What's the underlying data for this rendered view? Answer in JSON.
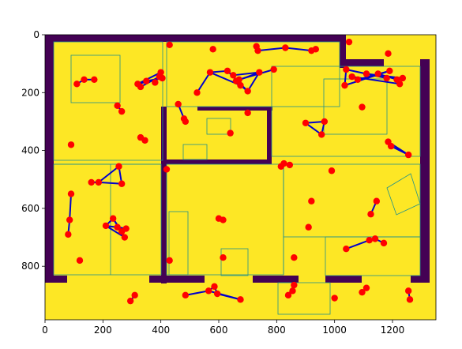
{
  "chart_data": {
    "type": "scatter",
    "title": "",
    "xlabel": "",
    "ylabel": "",
    "xlim": [
      0,
      1350
    ],
    "ylim": [
      985,
      0
    ],
    "x_ticks": [
      "0",
      "200",
      "400",
      "600",
      "800",
      "1000",
      "1200"
    ],
    "y_ticks": [
      "0",
      "200",
      "400",
      "600",
      "800"
    ],
    "grid": false,
    "legend": "none",
    "background": "floor plan raster (yellow rooms, dark purple walls)",
    "colors": {
      "background": "#fde725",
      "walls": "#440154",
      "lines": "#21918c",
      "points": "#ff0000",
      "edges": "#0000cc"
    },
    "points": [
      [
        430,
        35
      ],
      [
        580,
        50
      ],
      [
        730,
        40
      ],
      [
        735,
        55
      ],
      [
        830,
        45
      ],
      [
        920,
        55
      ],
      [
        935,
        50
      ],
      [
        1050,
        25
      ],
      [
        1185,
        65
      ],
      [
        110,
        170
      ],
      [
        135,
        155
      ],
      [
        170,
        155
      ],
      [
        320,
        170
      ],
      [
        330,
        180
      ],
      [
        350,
        160
      ],
      [
        380,
        165
      ],
      [
        395,
        145
      ],
      [
        400,
        130
      ],
      [
        405,
        150
      ],
      [
        525,
        200
      ],
      [
        570,
        130
      ],
      [
        630,
        125
      ],
      [
        650,
        140
      ],
      [
        660,
        160
      ],
      [
        670,
        155
      ],
      [
        675,
        175
      ],
      [
        700,
        195
      ],
      [
        740,
        130
      ],
      [
        790,
        120
      ],
      [
        1035,
        175
      ],
      [
        1040,
        120
      ],
      [
        1060,
        145
      ],
      [
        1080,
        155
      ],
      [
        1110,
        135
      ],
      [
        1150,
        135
      ],
      [
        1180,
        150
      ],
      [
        1190,
        125
      ],
      [
        1215,
        155
      ],
      [
        1225,
        170
      ],
      [
        1235,
        150
      ],
      [
        250,
        245
      ],
      [
        265,
        265
      ],
      [
        460,
        240
      ],
      [
        480,
        290
      ],
      [
        485,
        300
      ],
      [
        640,
        340
      ],
      [
        700,
        270
      ],
      [
        900,
        305
      ],
      [
        955,
        345
      ],
      [
        965,
        300
      ],
      [
        1095,
        250
      ],
      [
        1185,
        370
      ],
      [
        1195,
        385
      ],
      [
        1255,
        415
      ],
      [
        90,
        380
      ],
      [
        330,
        355
      ],
      [
        345,
        365
      ],
      [
        160,
        510
      ],
      [
        185,
        510
      ],
      [
        255,
        455
      ],
      [
        265,
        515
      ],
      [
        420,
        465
      ],
      [
        815,
        455
      ],
      [
        825,
        445
      ],
      [
        845,
        450
      ],
      [
        990,
        470
      ],
      [
        90,
        550
      ],
      [
        85,
        640
      ],
      [
        80,
        690
      ],
      [
        210,
        660
      ],
      [
        235,
        635
      ],
      [
        250,
        665
      ],
      [
        265,
        680
      ],
      [
        275,
        700
      ],
      [
        280,
        670
      ],
      [
        920,
        575
      ],
      [
        1125,
        620
      ],
      [
        1145,
        575
      ],
      [
        120,
        780
      ],
      [
        430,
        780
      ],
      [
        600,
        635
      ],
      [
        615,
        640
      ],
      [
        615,
        770
      ],
      [
        860,
        770
      ],
      [
        910,
        665
      ],
      [
        1040,
        740
      ],
      [
        1120,
        710
      ],
      [
        1140,
        705
      ],
      [
        1170,
        720
      ],
      [
        295,
        920
      ],
      [
        310,
        900
      ],
      [
        485,
        900
      ],
      [
        565,
        885
      ],
      [
        585,
        870
      ],
      [
        595,
        895
      ],
      [
        675,
        915
      ],
      [
        840,
        900
      ],
      [
        855,
        885
      ],
      [
        860,
        865
      ],
      [
        1000,
        910
      ],
      [
        1095,
        890
      ],
      [
        1110,
        875
      ],
      [
        1255,
        885
      ],
      [
        1260,
        915
      ]
    ],
    "edges": [
      [
        [
          735,
          55
        ],
        [
          830,
          45
        ]
      ],
      [
        [
          830,
          45
        ],
        [
          920,
          55
        ]
      ],
      [
        [
          920,
          55
        ],
        [
          935,
          50
        ]
      ],
      [
        [
          110,
          170
        ],
        [
          135,
          155
        ]
      ],
      [
        [
          135,
          155
        ],
        [
          170,
          155
        ]
      ],
      [
        [
          320,
          170
        ],
        [
          400,
          130
        ]
      ],
      [
        [
          330,
          180
        ],
        [
          395,
          145
        ]
      ],
      [
        [
          350,
          160
        ],
        [
          405,
          150
        ]
      ],
      [
        [
          380,
          165
        ],
        [
          400,
          130
        ]
      ],
      [
        [
          320,
          170
        ],
        [
          405,
          150
        ]
      ],
      [
        [
          525,
          200
        ],
        [
          570,
          130
        ]
      ],
      [
        [
          570,
          130
        ],
        [
          630,
          125
        ]
      ],
      [
        [
          630,
          125
        ],
        [
          700,
          195
        ]
      ],
      [
        [
          650,
          140
        ],
        [
          740,
          130
        ]
      ],
      [
        [
          660,
          160
        ],
        [
          740,
          130
        ]
      ],
      [
        [
          670,
          155
        ],
        [
          790,
          120
        ]
      ],
      [
        [
          675,
          175
        ],
        [
          700,
          195
        ]
      ],
      [
        [
          570,
          130
        ],
        [
          675,
          175
        ]
      ],
      [
        [
          700,
          195
        ],
        [
          740,
          130
        ]
      ],
      [
        [
          1035,
          175
        ],
        [
          1040,
          120
        ]
      ],
      [
        [
          1040,
          120
        ],
        [
          1180,
          150
        ]
      ],
      [
        [
          1060,
          145
        ],
        [
          1225,
          170
        ]
      ],
      [
        [
          1080,
          155
        ],
        [
          1190,
          125
        ]
      ],
      [
        [
          1110,
          135
        ],
        [
          1235,
          150
        ]
      ],
      [
        [
          1150,
          135
        ],
        [
          1215,
          155
        ]
      ],
      [
        [
          1035,
          175
        ],
        [
          1190,
          125
        ]
      ],
      [
        [
          250,
          245
        ],
        [
          265,
          265
        ]
      ],
      [
        [
          460,
          240
        ],
        [
          480,
          290
        ]
      ],
      [
        [
          480,
          290
        ],
        [
          485,
          300
        ]
      ],
      [
        [
          900,
          305
        ],
        [
          955,
          345
        ]
      ],
      [
        [
          955,
          345
        ],
        [
          965,
          300
        ]
      ],
      [
        [
          900,
          305
        ],
        [
          965,
          300
        ]
      ],
      [
        [
          1185,
          370
        ],
        [
          1195,
          385
        ]
      ],
      [
        [
          1195,
          385
        ],
        [
          1255,
          415
        ]
      ],
      [
        [
          1185,
          370
        ],
        [
          1255,
          415
        ]
      ],
      [
        [
          330,
          355
        ],
        [
          345,
          365
        ]
      ],
      [
        [
          160,
          510
        ],
        [
          185,
          510
        ]
      ],
      [
        [
          185,
          510
        ],
        [
          255,
          455
        ]
      ],
      [
        [
          255,
          455
        ],
        [
          265,
          515
        ]
      ],
      [
        [
          185,
          510
        ],
        [
          265,
          515
        ]
      ],
      [
        [
          815,
          455
        ],
        [
          825,
          445
        ]
      ],
      [
        [
          825,
          445
        ],
        [
          845,
          450
        ]
      ],
      [
        [
          90,
          550
        ],
        [
          85,
          640
        ]
      ],
      [
        [
          85,
          640
        ],
        [
          80,
          690
        ]
      ],
      [
        [
          210,
          660
        ],
        [
          235,
          635
        ]
      ],
      [
        [
          235,
          635
        ],
        [
          275,
          700
        ]
      ],
      [
        [
          210,
          660
        ],
        [
          280,
          670
        ]
      ],
      [
        [
          235,
          635
        ],
        [
          265,
          680
        ]
      ],
      [
        [
          250,
          665
        ],
        [
          280,
          670
        ]
      ],
      [
        [
          210,
          660
        ],
        [
          275,
          700
        ]
      ],
      [
        [
          1125,
          620
        ],
        [
          1145,
          575
        ]
      ],
      [
        [
          600,
          635
        ],
        [
          615,
          640
        ]
      ],
      [
        [
          1040,
          740
        ],
        [
          1120,
          710
        ]
      ],
      [
        [
          1120,
          710
        ],
        [
          1140,
          705
        ]
      ],
      [
        [
          1140,
          705
        ],
        [
          1170,
          720
        ]
      ],
      [
        [
          295,
          920
        ],
        [
          310,
          900
        ]
      ],
      [
        [
          485,
          900
        ],
        [
          565,
          885
        ]
      ],
      [
        [
          565,
          885
        ],
        [
          585,
          870
        ]
      ],
      [
        [
          585,
          870
        ],
        [
          595,
          895
        ]
      ],
      [
        [
          595,
          895
        ],
        [
          675,
          915
        ]
      ],
      [
        [
          565,
          885
        ],
        [
          675,
          915
        ]
      ],
      [
        [
          840,
          900
        ],
        [
          855,
          885
        ]
      ],
      [
        [
          855,
          885
        ],
        [
          860,
          865
        ]
      ],
      [
        [
          840,
          900
        ],
        [
          860,
          865
        ]
      ],
      [
        [
          1095,
          890
        ],
        [
          1110,
          875
        ]
      ],
      [
        [
          1255,
          885
        ],
        [
          1260,
          915
        ]
      ]
    ]
  }
}
